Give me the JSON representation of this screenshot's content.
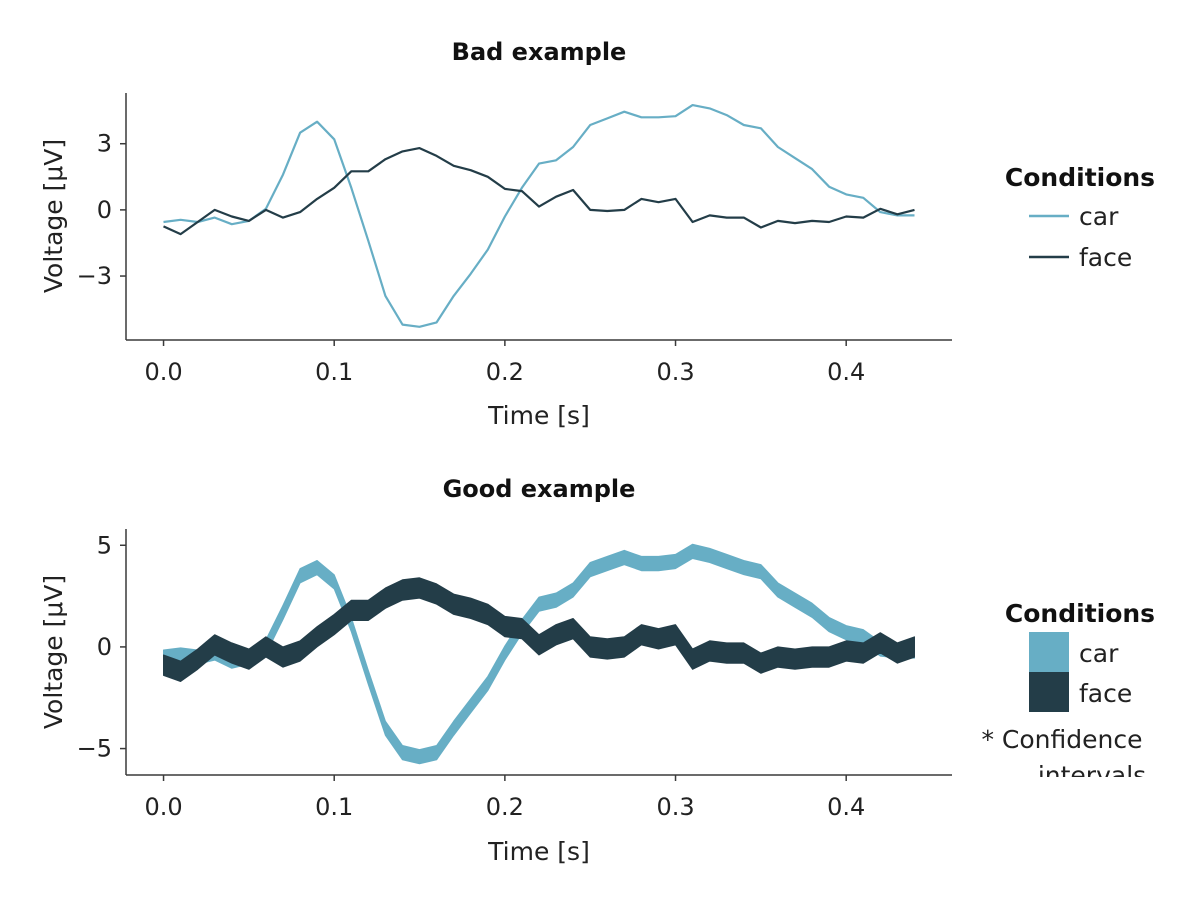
{
  "colors": {
    "car": "#67aec5",
    "face": "#233d48",
    "axis": "#3a3a3a"
  },
  "chart_data": [
    {
      "type": "line",
      "title": "Bad example",
      "xlabel": "Time [s]",
      "ylabel": "Voltage [μV]",
      "xlim": [
        -0.022,
        0.462
      ],
      "ylim": [
        -5.9,
        5.3
      ],
      "xticks": [
        0.0,
        0.1,
        0.2,
        0.3,
        0.4
      ],
      "xtick_labels": [
        "0.0",
        "0.1",
        "0.2",
        "0.3",
        "0.4"
      ],
      "yticks": [
        3,
        0,
        -3
      ],
      "ytick_labels": [
        "3",
        "0",
        "−3"
      ],
      "grid": false,
      "legend": {
        "title": "Conditions",
        "position": "right",
        "entries": [
          "car",
          "face"
        ]
      },
      "x": [
        0.0,
        0.01,
        0.02,
        0.03,
        0.04,
        0.05,
        0.06,
        0.07,
        0.08,
        0.09,
        0.1,
        0.11,
        0.12,
        0.13,
        0.14,
        0.15,
        0.16,
        0.17,
        0.18,
        0.19,
        0.2,
        0.21,
        0.22,
        0.23,
        0.24,
        0.25,
        0.26,
        0.27,
        0.28,
        0.29,
        0.3,
        0.31,
        0.32,
        0.33,
        0.34,
        0.35,
        0.36,
        0.37,
        0.38,
        0.39,
        0.4,
        0.41,
        0.42,
        0.43,
        0.44
      ],
      "series": [
        {
          "name": "car",
          "values": [
            -0.55,
            -0.45,
            -0.55,
            -0.35,
            -0.65,
            -0.5,
            0.05,
            1.6,
            3.5,
            4.0,
            3.2,
            1.0,
            -1.4,
            -3.9,
            -5.2,
            -5.3,
            -5.1,
            -3.9,
            -2.9,
            -1.8,
            -0.3,
            1.0,
            2.1,
            2.25,
            2.85,
            3.85,
            4.15,
            4.45,
            4.2,
            4.2,
            4.25,
            4.75,
            4.6,
            4.3,
            3.85,
            3.7,
            2.85,
            2.35,
            1.85,
            1.05,
            0.7,
            0.55,
            -0.1,
            -0.25,
            -0.25
          ]
        },
        {
          "name": "face",
          "values": [
            -0.75,
            -1.1,
            -0.55,
            0.0,
            -0.3,
            -0.5,
            0.0,
            -0.35,
            -0.1,
            0.5,
            1.0,
            1.75,
            1.75,
            2.3,
            2.65,
            2.8,
            2.45,
            2.0,
            1.8,
            1.5,
            0.95,
            0.85,
            0.15,
            0.6,
            0.9,
            0.0,
            -0.05,
            0.0,
            0.5,
            0.35,
            0.5,
            -0.55,
            -0.25,
            -0.35,
            -0.35,
            -0.8,
            -0.5,
            -0.6,
            -0.5,
            -0.55,
            -0.3,
            -0.35,
            0.05,
            -0.2,
            0.0
          ]
        }
      ]
    },
    {
      "type": "area",
      "title": "Good example",
      "xlabel": "Time [s]",
      "ylabel": "Voltage [μV]",
      "xlim": [
        -0.022,
        0.462
      ],
      "ylim": [
        -6.3,
        5.8
      ],
      "xticks": [
        0.0,
        0.1,
        0.2,
        0.3,
        0.4
      ],
      "xtick_labels": [
        "0.0",
        "0.1",
        "0.2",
        "0.3",
        "0.4"
      ],
      "yticks": [
        5,
        0,
        -5
      ],
      "ytick_labels": [
        "5",
        "0",
        "−5"
      ],
      "grid": false,
      "legend": {
        "title": "Conditions",
        "position": "right",
        "entries": [
          "car",
          "face"
        ],
        "note": "* Confidence intervals"
      },
      "x": [
        0.0,
        0.01,
        0.02,
        0.03,
        0.04,
        0.05,
        0.06,
        0.07,
        0.08,
        0.09,
        0.1,
        0.11,
        0.12,
        0.13,
        0.14,
        0.15,
        0.16,
        0.17,
        0.18,
        0.19,
        0.2,
        0.21,
        0.22,
        0.23,
        0.24,
        0.25,
        0.26,
        0.27,
        0.28,
        0.29,
        0.3,
        0.31,
        0.32,
        0.33,
        0.34,
        0.35,
        0.36,
        0.37,
        0.38,
        0.39,
        0.4,
        0.41,
        0.42,
        0.43,
        0.44
      ],
      "series": [
        {
          "name": "car",
          "values": [
            -0.5,
            -0.4,
            -0.5,
            -0.3,
            -0.7,
            -0.5,
            0.0,
            1.7,
            3.5,
            3.9,
            3.2,
            1.1,
            -1.5,
            -4.0,
            -5.2,
            -5.4,
            -5.2,
            -4.0,
            -2.9,
            -1.8,
            -0.3,
            1.0,
            2.1,
            2.3,
            2.8,
            3.8,
            4.1,
            4.4,
            4.1,
            4.1,
            4.2,
            4.7,
            4.5,
            4.2,
            3.9,
            3.7,
            2.8,
            2.3,
            1.8,
            1.1,
            0.7,
            0.5,
            -0.1,
            -0.2,
            -0.2
          ],
          "ci_halfwidth": 0.35
        },
        {
          "name": "face",
          "values": [
            -0.9,
            -1.2,
            -0.6,
            0.1,
            -0.3,
            -0.6,
            0.0,
            -0.5,
            -0.2,
            0.5,
            1.1,
            1.8,
            1.8,
            2.4,
            2.8,
            2.9,
            2.6,
            2.1,
            1.9,
            1.6,
            1.0,
            0.9,
            0.1,
            0.6,
            0.9,
            0.0,
            -0.1,
            0.0,
            0.6,
            0.4,
            0.6,
            -0.6,
            -0.2,
            -0.3,
            -0.3,
            -0.8,
            -0.5,
            -0.6,
            -0.5,
            -0.5,
            -0.2,
            -0.3,
            0.2,
            -0.3,
            0.0
          ],
          "ci_halfwidth": 0.5
        }
      ]
    }
  ]
}
